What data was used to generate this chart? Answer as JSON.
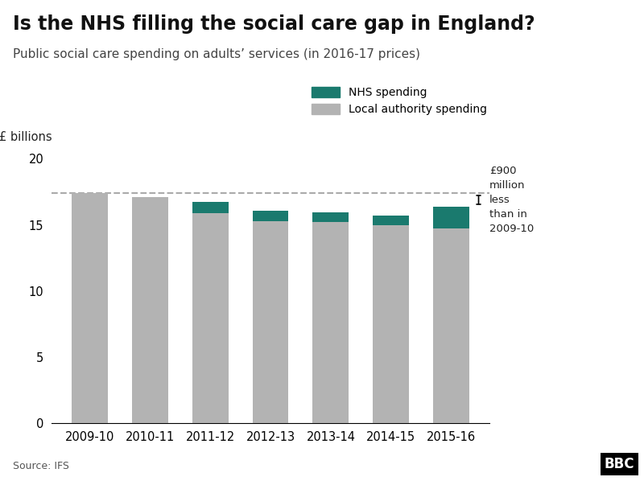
{
  "title": "Is the NHS filling the social care gap in England?",
  "subtitle": "Public social care spending on adults’ services (in 2016-17 prices)",
  "ylabel": "£ billions",
  "source": "Source: IFS",
  "categories": [
    "2009-10",
    "2010-11",
    "2011-12",
    "2012-13",
    "2013-14",
    "2014-15",
    "2015-16"
  ],
  "local_authority": [
    17.4,
    17.1,
    15.9,
    15.3,
    15.2,
    14.95,
    14.7
  ],
  "nhs_spending": [
    0.0,
    0.0,
    0.85,
    0.75,
    0.75,
    0.75,
    1.7
  ],
  "dashed_line_y": 17.4,
  "bar_color_local": "#b3b3b3",
  "bar_color_nhs": "#1a7a6e",
  "dashed_line_color": "#aaaaaa",
  "background_color": "#ffffff",
  "ylim": [
    0,
    20
  ],
  "yticks": [
    0,
    5,
    10,
    15,
    20
  ],
  "annotation_text": "£900\nmillion\nless\nthan in\n2009-10",
  "legend_nhs": "NHS spending",
  "legend_local": "Local authority spending",
  "title_fontsize": 17,
  "subtitle_fontsize": 11,
  "bar_width": 0.6
}
